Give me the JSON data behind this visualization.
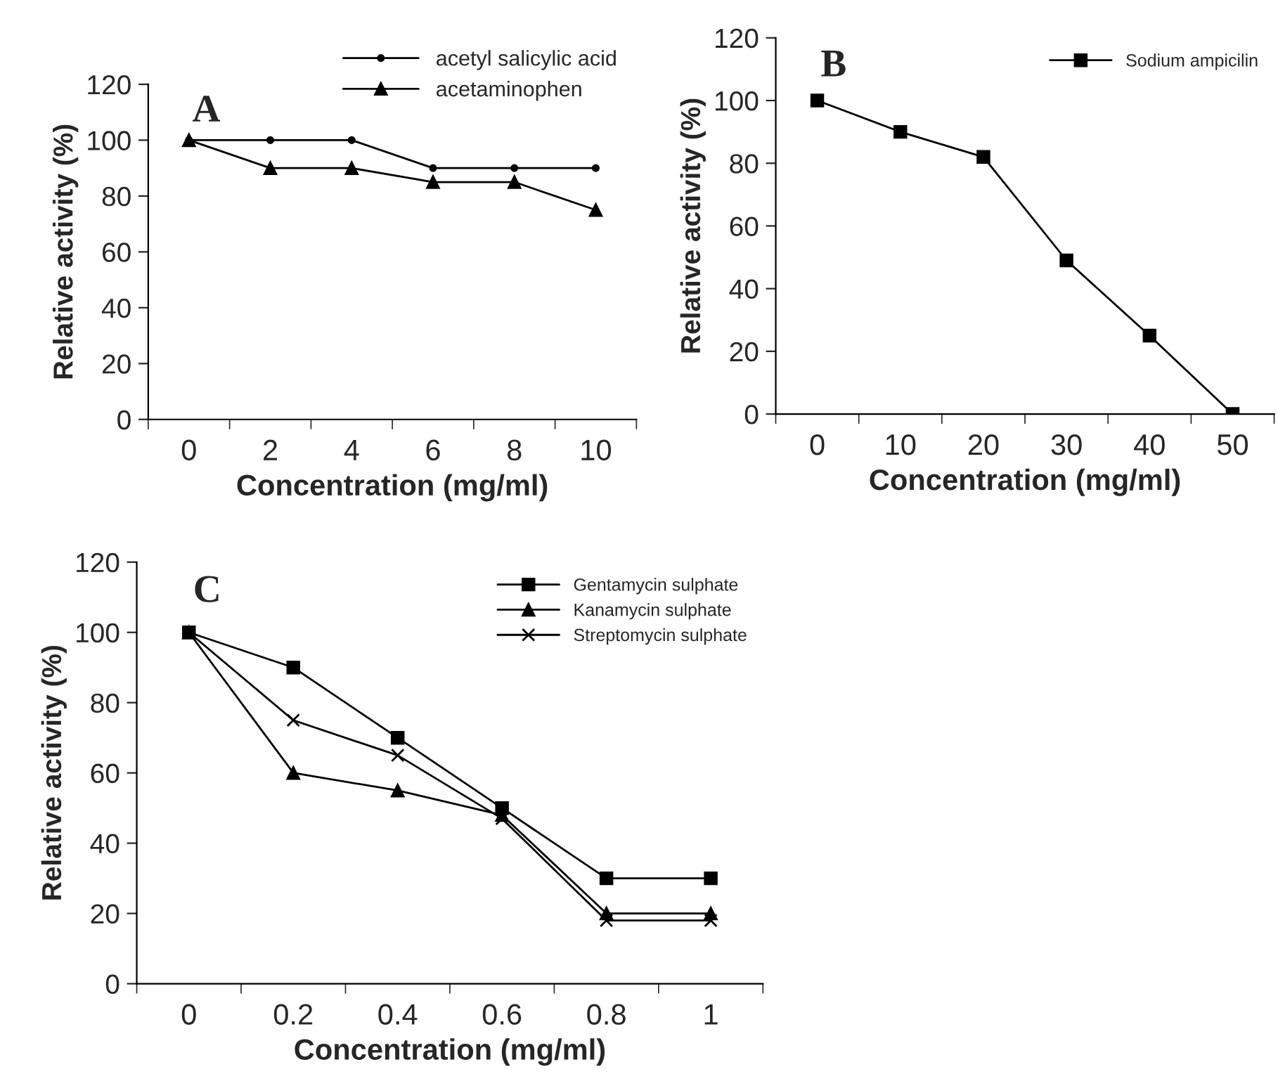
{
  "chart_data": [
    {
      "type": "line",
      "title": "A",
      "xlabel": "Concentration (mg/ml)",
      "ylabel": "Relative activity (%)",
      "categories": [
        "0",
        "2",
        "4",
        "6",
        "8",
        "10"
      ],
      "ylim": [
        0,
        120
      ],
      "yticks": [
        0,
        20,
        40,
        60,
        80,
        100,
        120
      ],
      "grid": false,
      "legend": "top right",
      "series": [
        {
          "name": "acetyl salicylic acid",
          "color": "#000000",
          "marker": "circle",
          "values": [
            100,
            100,
            100,
            90,
            90,
            90
          ]
        },
        {
          "name": "acetaminophen",
          "color": "#000000",
          "marker": "triangle",
          "values": [
            100,
            90,
            90,
            85,
            85,
            75
          ]
        }
      ]
    },
    {
      "type": "line",
      "title": "B",
      "xlabel": "Concentration (mg/ml)",
      "ylabel": "Relative activity (%)",
      "categories": [
        "0",
        "10",
        "20",
        "30",
        "40",
        "50"
      ],
      "ylim": [
        0,
        120
      ],
      "yticks": [
        0,
        20,
        40,
        60,
        80,
        100,
        120
      ],
      "grid": false,
      "legend": "top right",
      "series": [
        {
          "name": "Sodium ampicilin",
          "color": "#000000",
          "marker": "square",
          "values": [
            100,
            90,
            82,
            49,
            25,
            0
          ]
        }
      ]
    },
    {
      "type": "line",
      "title": "C",
      "xlabel": "Concentration (mg/ml)",
      "ylabel": "Relative activity (%)",
      "categories": [
        "0",
        "0.2",
        "0.4",
        "0.6",
        "0.8",
        "1"
      ],
      "ylim": [
        0,
        120
      ],
      "yticks": [
        0,
        20,
        40,
        60,
        80,
        100,
        120
      ],
      "grid": false,
      "legend": "top right",
      "series": [
        {
          "name": "Gentamycin sulphate",
          "color": "#000000",
          "marker": "square",
          "values": [
            100,
            90,
            70,
            50,
            30,
            30
          ]
        },
        {
          "name": "Kanamycin sulphate",
          "color": "#000000",
          "marker": "triangle",
          "values": [
            100,
            60,
            55,
            48,
            20,
            20
          ]
        },
        {
          "name": "Streptomycin sulphate",
          "color": "#000000",
          "marker": "cross",
          "values": [
            100,
            75,
            65,
            47,
            18,
            18
          ]
        }
      ]
    }
  ]
}
